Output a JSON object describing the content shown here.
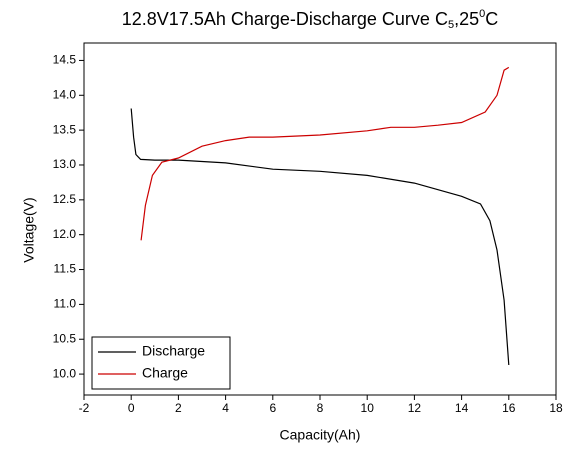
{
  "chart_data": {
    "type": "line",
    "title": [
      "12.8V17.5Ah Charge-Discharge Curve  C",
      "5",
      ",25",
      "0",
      "C"
    ],
    "x_label": "Capacity(Ah)",
    "y_label": "Voltage(V)",
    "xlim": [
      -2,
      18
    ],
    "xticks": [
      -2,
      0,
      2,
      4,
      6,
      8,
      10,
      12,
      14,
      16,
      18
    ],
    "ylim": [
      9.7,
      14.75
    ],
    "yticks": [
      {
        "value": 10,
        "label": "10.0"
      },
      10.5,
      {
        "value": 11,
        "label": "11.0"
      },
      11.5,
      {
        "value": 12,
        "label": "12.0"
      },
      12.5,
      {
        "value": 13,
        "label": "13.0"
      },
      13.5,
      {
        "value": 14,
        "label": "14.0"
      },
      14.5
    ],
    "legend": "lower left",
    "series": [
      {
        "name": "Discharge",
        "color": "#000000",
        "x": [
          0,
          0.1,
          0.2,
          0.4,
          1,
          2,
          4,
          6,
          8,
          10,
          12,
          14,
          14.8,
          15.2,
          15.5,
          15.8,
          16
        ],
        "values": [
          13.81,
          13.4,
          13.15,
          13.08,
          13.07,
          13.07,
          13.03,
          12.94,
          12.91,
          12.85,
          12.74,
          12.55,
          12.44,
          12.2,
          11.78,
          11.06,
          10.13
        ]
      },
      {
        "name": "Charge",
        "color": "#cc0000",
        "x": [
          0.42,
          0.6,
          0.9,
          1.3,
          2,
          3,
          4,
          5,
          6,
          8,
          10,
          11,
          12,
          13,
          14,
          15,
          15.5,
          15.8,
          16
        ],
        "values": [
          11.92,
          12.42,
          12.85,
          13.04,
          13.1,
          13.27,
          13.35,
          13.4,
          13.4,
          13.43,
          13.49,
          13.54,
          13.54,
          13.57,
          13.61,
          13.76,
          14.0,
          14.36,
          14.4
        ]
      }
    ]
  }
}
